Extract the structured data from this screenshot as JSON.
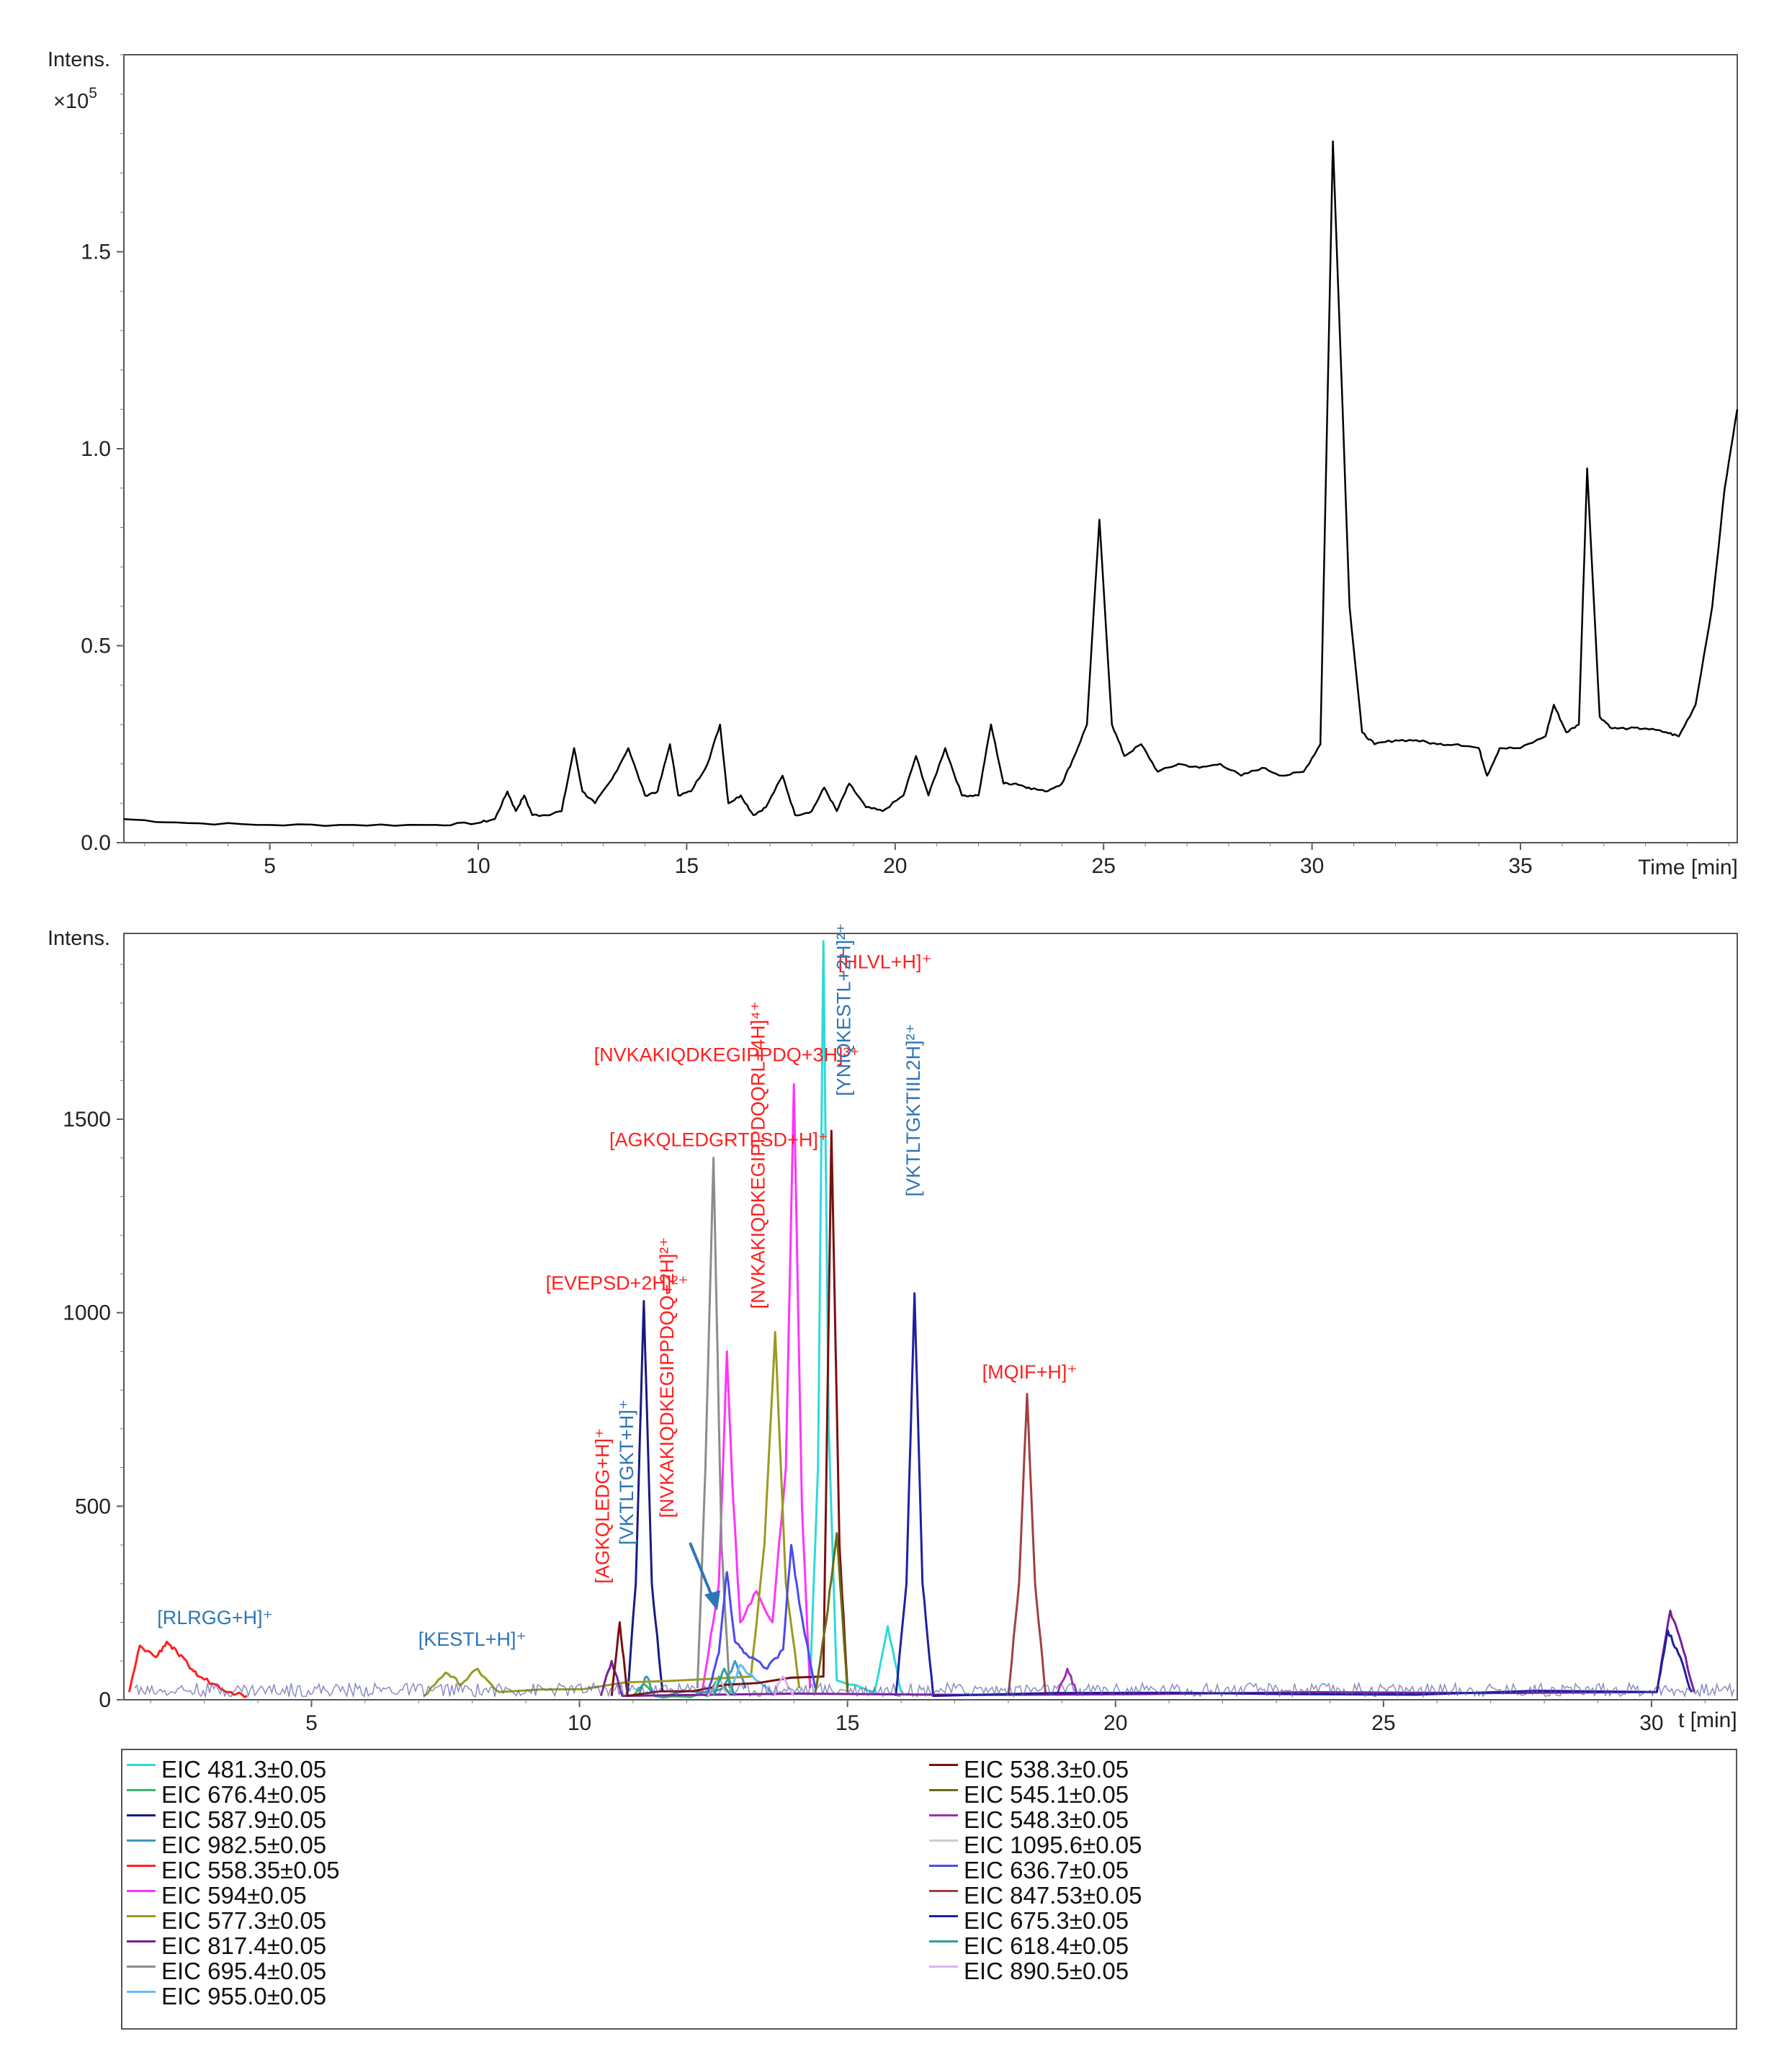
{
  "chart_data": [
    {
      "type": "line",
      "ylabel": "Intens.",
      "yexp": "×10",
      "yexp_power": "5",
      "xlabel": "Time [min]",
      "xlim": [
        1.5,
        40.2
      ],
      "ylim": [
        0,
        2.0
      ],
      "xticks": [
        5,
        10,
        15,
        20,
        25,
        30,
        35
      ],
      "yticks": [
        0.0,
        0.5,
        1.0,
        1.5
      ],
      "ytick_labels": [
        "0.0",
        "0.5",
        "1.0",
        "1.5"
      ],
      "series": [
        {
          "color": "#000000",
          "x": [
            1.5,
            3,
            5,
            7,
            9,
            10,
            10.4,
            10.7,
            10.9,
            11.1,
            11.3,
            11.6,
            12.0,
            12.3,
            12.5,
            12.8,
            13.2,
            13.6,
            14.0,
            14.3,
            14.6,
            14.8,
            15.1,
            15.5,
            15.8,
            16.0,
            16.3,
            16.6,
            16.9,
            17.3,
            17.6,
            18.0,
            18.3,
            18.6,
            18.9,
            19.3,
            19.7,
            20.2,
            20.5,
            20.8,
            21.2,
            21.6,
            22.0,
            22.3,
            22.6,
            22.9,
            23.2,
            23.6,
            24.0,
            24.3,
            24.6,
            24.9,
            25.2,
            25.5,
            25.9,
            26.3,
            26.8,
            27.3,
            27.8,
            28.3,
            28.8,
            29.3,
            29.8,
            30.2,
            30.5,
            30.7,
            30.9,
            31.2,
            31.5,
            32.0,
            32.5,
            33.0,
            33.5,
            34.0,
            34.2,
            34.5,
            35.0,
            35.6,
            35.8,
            36.1,
            36.4,
            36.6,
            36.9,
            37.2,
            37.6,
            38.0,
            38.5,
            38.8,
            39.2,
            39.6,
            39.9,
            40.2
          ],
          "y": [
            0.06,
            0.05,
            0.045,
            0.045,
            0.045,
            0.05,
            0.06,
            0.13,
            0.08,
            0.12,
            0.07,
            0.07,
            0.08,
            0.24,
            0.13,
            0.1,
            0.16,
            0.24,
            0.12,
            0.13,
            0.25,
            0.12,
            0.13,
            0.2,
            0.3,
            0.1,
            0.12,
            0.07,
            0.09,
            0.17,
            0.07,
            0.08,
            0.14,
            0.08,
            0.15,
            0.09,
            0.08,
            0.12,
            0.22,
            0.12,
            0.24,
            0.12,
            0.12,
            0.3,
            0.15,
            0.15,
            0.14,
            0.13,
            0.15,
            0.22,
            0.3,
            0.82,
            0.3,
            0.22,
            0.25,
            0.18,
            0.2,
            0.19,
            0.2,
            0.17,
            0.19,
            0.17,
            0.18,
            0.25,
            1.78,
            1.2,
            0.6,
            0.28,
            0.25,
            0.26,
            0.26,
            0.25,
            0.25,
            0.24,
            0.17,
            0.24,
            0.24,
            0.27,
            0.35,
            0.28,
            0.3,
            0.95,
            0.32,
            0.29,
            0.29,
            0.29,
            0.28,
            0.27,
            0.35,
            0.6,
            0.9,
            1.1
          ]
        }
      ]
    },
    {
      "type": "line",
      "ylabel": "Intens.",
      "xlabel": "t [min]",
      "xlim": [
        1.5,
        31.6
      ],
      "ylim": [
        0,
        1980
      ],
      "xticks": [
        5,
        10,
        15,
        20,
        25,
        30
      ],
      "yticks": [
        0,
        500,
        1000,
        1500
      ],
      "series": [
        {
          "name": "EIC 481.3±0.05",
          "color": "#2fd9d9",
          "x": [
            14.3,
            14.45,
            14.55,
            14.65,
            14.8,
            15.5,
            15.75,
            16.0
          ],
          "y": [
            40,
            600,
            1960,
            700,
            50,
            20,
            190,
            20
          ]
        },
        {
          "name": "EIC 676.4±0.05",
          "color": "#3cb371",
          "x": [
            11.0,
            11.2,
            11.4,
            12.4,
            12.6,
            12.8
          ],
          "y": [
            10,
            40,
            10,
            10,
            60,
            10
          ]
        },
        {
          "name": "EIC 587.9±0.05",
          "color": "#1a1a80",
          "x": [
            10.9,
            11.05,
            11.2,
            11.35,
            11.55
          ],
          "y": [
            20,
            300,
            1030,
            300,
            20
          ]
        },
        {
          "name": "EIC 982.5±0.05",
          "color": "#3a9ab5",
          "x": [
            11.1,
            11.25,
            11.4,
            12.7,
            12.9,
            13.1
          ],
          "y": [
            10,
            60,
            10,
            30,
            100,
            30
          ]
        },
        {
          "name": "EIC 558.35±0.05",
          "color": "#ff2020",
          "x": [
            1.6,
            1.8,
            2.1,
            2.3,
            2.5,
            2.7,
            2.9,
            3.2,
            3.5,
            3.8
          ],
          "y": [
            20,
            140,
            110,
            150,
            120,
            90,
            60,
            40,
            20,
            10
          ]
        },
        {
          "name": "EIC 594±0.05",
          "color": "#ff33ff",
          "x": [
            12.3,
            12.6,
            12.75,
            12.85,
            13.0,
            13.3,
            13.6,
            13.85,
            14.0,
            14.15,
            14.3
          ],
          "y": [
            30,
            300,
            900,
            560,
            200,
            280,
            200,
            600,
            1590,
            500,
            30
          ]
        },
        {
          "name": "EIC 577.3±0.05",
          "color": "#9a9a20",
          "x": [
            7.1,
            7.5,
            7.8,
            8.1,
            8.5,
            13.2,
            13.45,
            13.65,
            13.85,
            14.1
          ],
          "y": [
            10,
            70,
            40,
            80,
            20,
            60,
            400,
            950,
            300,
            30
          ]
        },
        {
          "name": "EIC 817.4±0.05",
          "color": "#7a1f9a",
          "x": [
            10.4,
            10.6,
            10.8,
            30.1,
            30.35,
            30.55,
            30.8
          ],
          "y": [
            10,
            100,
            10,
            20,
            230,
            150,
            20
          ]
        },
        {
          "name": "EIC 695.4±0.05",
          "color": "#8c8c8c",
          "x": [
            12.2,
            12.35,
            12.5,
            12.65,
            12.8
          ],
          "y": [
            30,
            600,
            1400,
            400,
            30
          ]
        },
        {
          "name": "EIC 955.0±0.05",
          "color": "#66bbff",
          "x": [
            12.8,
            13.0,
            13.3,
            13.6
          ],
          "y": [
            20,
            90,
            50,
            20
          ]
        },
        {
          "name": "EIC 538.3±0.05",
          "color": "#7a1010",
          "x": [
            10.6,
            10.75,
            10.9,
            14.55,
            14.7,
            14.85,
            15.0
          ],
          "y": [
            10,
            200,
            10,
            60,
            1470,
            400,
            30
          ]
        },
        {
          "name": "EIC 545.1±0.05",
          "color": "#6b6b10",
          "x": [
            14.4,
            14.6,
            14.8,
            15.0
          ],
          "y": [
            20,
            200,
            430,
            20
          ]
        },
        {
          "name": "EIC 548.3±0.05",
          "color": "#9b30b0",
          "x": [
            18.9,
            19.1,
            19.3
          ],
          "y": [
            10,
            80,
            10
          ]
        },
        {
          "name": "EIC 1095.6±0.05",
          "color": "#cccccc",
          "x": [
            12.4,
            12.6,
            12.8
          ],
          "y": [
            10,
            50,
            10
          ]
        },
        {
          "name": "EIC 636.7±0.05",
          "color": "#4a4aee",
          "x": [
            12.4,
            12.6,
            12.75,
            12.9,
            13.1,
            13.5,
            13.8,
            13.95,
            14.1,
            14.4
          ],
          "y": [
            20,
            120,
            330,
            150,
            120,
            80,
            130,
            400,
            250,
            30
          ]
        },
        {
          "name": "EIC 847.53±0.05",
          "color": "#a04040",
          "x": [
            18.0,
            18.2,
            18.35,
            18.5,
            18.7
          ],
          "y": [
            10,
            300,
            790,
            300,
            10
          ]
        },
        {
          "name": "EIC 675.3±0.05",
          "color": "#1f1fa0",
          "x": [
            15.9,
            16.1,
            16.25,
            16.4,
            16.6,
            30.1,
            30.3,
            30.5,
            30.75
          ],
          "y": [
            10,
            300,
            1050,
            300,
            10,
            20,
            180,
            120,
            20
          ]
        },
        {
          "name": "EIC 618.4±0.05",
          "color": "#2e9e9e",
          "x": [
            12.5,
            12.7,
            12.9
          ],
          "y": [
            10,
            80,
            10
          ]
        },
        {
          "name": "EIC 890.5±0.05",
          "color": "#e0b0f0",
          "x": [
            13.6,
            13.8,
            14.0
          ],
          "y": [
            10,
            60,
            10
          ]
        }
      ],
      "annotations": [
        {
          "text": "[RLRGG+H]⁺",
          "color": "#2e75b6",
          "x": 3.2,
          "y": 195,
          "rotate": false
        },
        {
          "text": "[KESTL+H]⁺",
          "color": "#2e75b6",
          "x": 8.0,
          "y": 140,
          "rotate": false
        },
        {
          "text": "[AGKQLEDG+H]⁺",
          "color": "#ff2020",
          "x": 10.55,
          "y": 300,
          "rotate": true
        },
        {
          "text": "[VKTLTGKT+H]⁺",
          "color": "#2e75b6",
          "x": 11.0,
          "y": 400,
          "rotate": true
        },
        {
          "text": "[NVKAKIQDKEGIPPDQQ+2H]²⁺",
          "color": "#ff2020",
          "x": 11.75,
          "y": 470,
          "rotate": true
        },
        {
          "text": "[EVEPSD+2H]²⁺",
          "color": "#ff2020",
          "x": 10.7,
          "y": 1060,
          "rotate": false
        },
        {
          "text": "[AGKQLEDGRTLSD+H]⁺",
          "color": "#ff2020",
          "x": 12.6,
          "y": 1430,
          "rotate": false
        },
        {
          "text": "[NVKAKIQDKEGIPPDQ+3H]³⁺",
          "color": "#ff2020",
          "x": 12.75,
          "y": 1650,
          "rotate": false
        },
        {
          "text": "[NVKAKIQDKEGIPPDQQRL+4H]⁴⁺",
          "color": "#ff2020",
          "x": 13.45,
          "y": 1010,
          "rotate": true
        },
        {
          "text": "[HLVL+H]⁺",
          "color": "#ff2020",
          "x": 15.7,
          "y": 1890,
          "rotate": false
        },
        {
          "text": "[YNIQKESTL+2H]²⁺",
          "color": "#2e75b6",
          "x": 15.05,
          "y": 1560,
          "rotate": true
        },
        {
          "text": "[VKTLTGKTIIL2H]²⁺",
          "color": "#2e75b6",
          "x": 16.35,
          "y": 1300,
          "rotate": true
        },
        {
          "text": "[MQIF+H]⁺",
          "color": "#ff2020",
          "x": 18.4,
          "y": 830,
          "rotate": false
        }
      ]
    }
  ]
}
